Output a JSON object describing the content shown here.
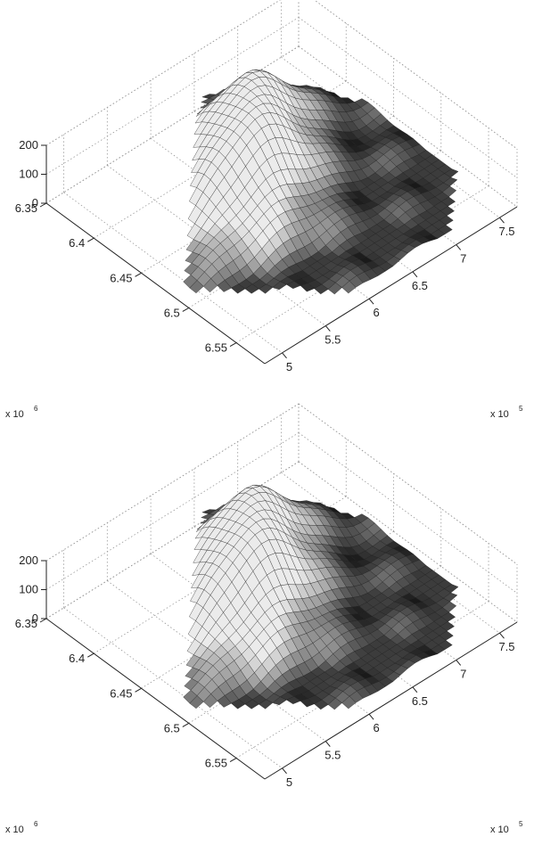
{
  "chart_data": [
    {
      "type": "surface",
      "x_ticks": [
        "6.35",
        "6.4",
        "6.45",
        "6.5",
        "6.55"
      ],
      "x_ticks_values": [
        6.35,
        6.4,
        6.45,
        6.5,
        6.55
      ],
      "x_multiplier": "x 10",
      "x_exponent": "6",
      "y_ticks": [
        "5",
        "5.5",
        "6",
        "6.5",
        "7",
        "7.5"
      ],
      "y_ticks_values": [
        5.0,
        5.5,
        6.0,
        6.5,
        7.0,
        7.5
      ],
      "y_multiplier": "x 10",
      "y_exponent": "5",
      "z_ticks": [
        "0",
        "100",
        "200"
      ],
      "z_ticks_values": [
        0,
        100,
        200
      ],
      "xlim": [
        6.35,
        6.58
      ],
      "ylim": [
        4.8,
        7.7
      ],
      "zlim": [
        0,
        200
      ],
      "grid": true,
      "colormap": "gray",
      "peaks": [
        {
          "x": 6.42,
          "y": 6.28,
          "z": 190
        },
        {
          "x": 6.46,
          "y": 6.02,
          "z": 140
        },
        {
          "x": 6.4,
          "y": 6.72,
          "z": 110
        }
      ]
    },
    {
      "type": "surface",
      "x_ticks": [
        "6.35",
        "6.4",
        "6.45",
        "6.5",
        "6.55"
      ],
      "x_ticks_values": [
        6.35,
        6.4,
        6.45,
        6.5,
        6.55
      ],
      "x_multiplier": "x 10",
      "x_exponent": "6",
      "y_ticks": [
        "5",
        "5.5",
        "6",
        "6.5",
        "7",
        "7.5"
      ],
      "y_ticks_values": [
        5.0,
        5.5,
        6.0,
        6.5,
        7.0,
        7.5
      ],
      "y_multiplier": "x 10",
      "y_exponent": "5",
      "z_ticks": [
        "0",
        "100",
        "200"
      ],
      "z_ticks_values": [
        0,
        100,
        200
      ],
      "xlim": [
        6.35,
        6.58
      ],
      "ylim": [
        4.8,
        7.7
      ],
      "zlim": [
        0,
        200
      ],
      "grid": true,
      "colormap": "gray",
      "peaks": [
        {
          "x": 6.42,
          "y": 6.28,
          "z": 190
        },
        {
          "x": 6.46,
          "y": 6.02,
          "z": 140
        },
        {
          "x": 6.4,
          "y": 6.72,
          "z": 110
        }
      ]
    }
  ]
}
